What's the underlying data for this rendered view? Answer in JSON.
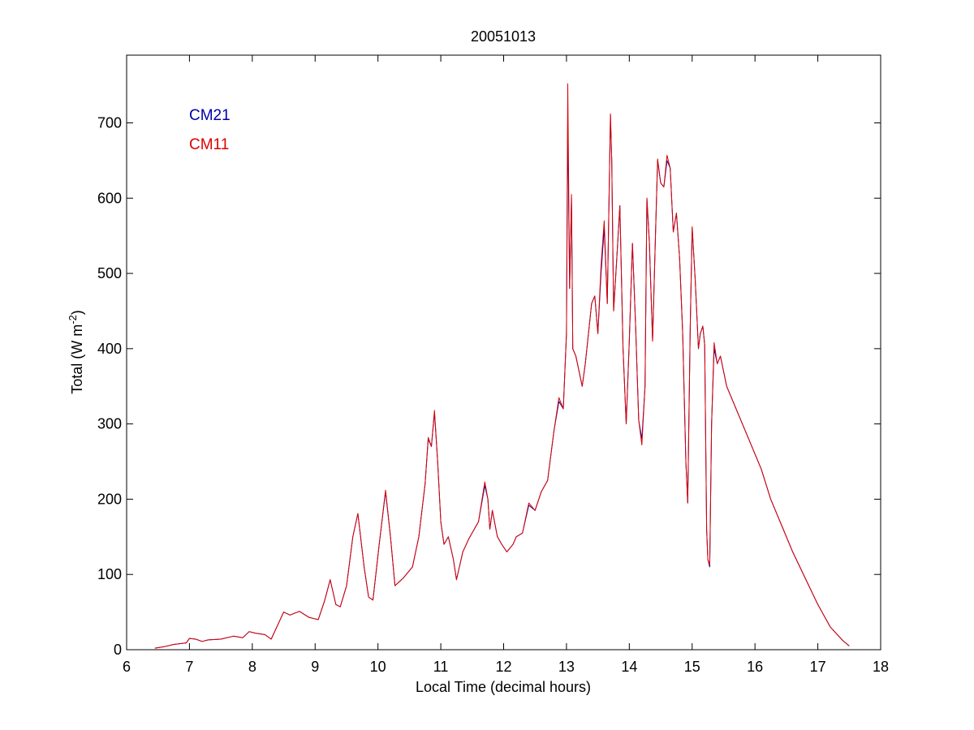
{
  "chart_data": {
    "type": "line",
    "title": "20051013",
    "xlabel": "Local Time (decimal hours)",
    "ylabel": {
      "main": "Total (W m",
      "sup": "-2",
      "close": ")"
    },
    "xlim": [
      6,
      18
    ],
    "ylim": [
      0,
      790
    ],
    "x_ticks": [
      6,
      7,
      8,
      9,
      10,
      11,
      12,
      13,
      14,
      15,
      16,
      17,
      18
    ],
    "y_ticks": [
      0,
      100,
      200,
      300,
      400,
      500,
      600,
      700
    ],
    "grid": false,
    "legend": {
      "placement": "top-left",
      "position_note": "text labels only, no line samples"
    },
    "series": [
      {
        "name": "CM21",
        "color": "#0000aa",
        "points": [
          [
            6.45,
            2
          ],
          [
            6.6,
            4
          ],
          [
            6.75,
            7
          ],
          [
            6.95,
            9
          ],
          [
            7.0,
            15
          ],
          [
            7.1,
            14
          ],
          [
            7.2,
            11
          ],
          [
            7.3,
            13
          ],
          [
            7.5,
            14
          ],
          [
            7.7,
            18
          ],
          [
            7.85,
            16
          ],
          [
            7.95,
            24
          ],
          [
            8.05,
            22
          ],
          [
            8.2,
            20
          ],
          [
            8.3,
            14
          ],
          [
            8.4,
            32
          ],
          [
            8.5,
            50
          ],
          [
            8.6,
            46
          ],
          [
            8.75,
            51
          ],
          [
            8.9,
            43
          ],
          [
            9.05,
            40
          ],
          [
            9.15,
            65
          ],
          [
            9.24,
            93
          ],
          [
            9.33,
            60
          ],
          [
            9.4,
            57
          ],
          [
            9.5,
            85
          ],
          [
            9.6,
            150
          ],
          [
            9.68,
            181
          ],
          [
            9.78,
            110
          ],
          [
            9.85,
            70
          ],
          [
            9.92,
            66
          ],
          [
            10.02,
            140
          ],
          [
            10.12,
            210
          ],
          [
            10.2,
            150
          ],
          [
            10.27,
            85
          ],
          [
            10.4,
            95
          ],
          [
            10.55,
            110
          ],
          [
            10.65,
            150
          ],
          [
            10.75,
            220
          ],
          [
            10.8,
            280
          ],
          [
            10.85,
            270
          ],
          [
            10.9,
            315
          ],
          [
            10.95,
            250
          ],
          [
            11.0,
            170
          ],
          [
            11.05,
            140
          ],
          [
            11.12,
            150
          ],
          [
            11.2,
            120
          ],
          [
            11.25,
            93
          ],
          [
            11.35,
            130
          ],
          [
            11.45,
            148
          ],
          [
            11.6,
            170
          ],
          [
            11.7,
            218
          ],
          [
            11.75,
            200
          ],
          [
            11.78,
            160
          ],
          [
            11.82,
            185
          ],
          [
            11.9,
            150
          ],
          [
            11.97,
            140
          ],
          [
            12.05,
            130
          ],
          [
            12.15,
            140
          ],
          [
            12.2,
            150
          ],
          [
            12.3,
            155
          ],
          [
            12.4,
            192
          ],
          [
            12.5,
            185
          ],
          [
            12.6,
            210
          ],
          [
            12.7,
            225
          ],
          [
            12.8,
            290
          ],
          [
            12.88,
            330
          ],
          [
            12.95,
            320
          ],
          [
            13.0,
            420
          ],
          [
            13.02,
            700
          ],
          [
            13.05,
            480
          ],
          [
            13.08,
            600
          ],
          [
            13.1,
            400
          ],
          [
            13.15,
            390
          ],
          [
            13.25,
            350
          ],
          [
            13.3,
            380
          ],
          [
            13.4,
            460
          ],
          [
            13.45,
            470
          ],
          [
            13.5,
            420
          ],
          [
            13.55,
            500
          ],
          [
            13.6,
            560
          ],
          [
            13.65,
            460
          ],
          [
            13.7,
            710
          ],
          [
            13.72,
            650
          ],
          [
            13.75,
            450
          ],
          [
            13.8,
            520
          ],
          [
            13.85,
            590
          ],
          [
            13.9,
            400
          ],
          [
            13.95,
            300
          ],
          [
            14.0,
            410
          ],
          [
            14.05,
            540
          ],
          [
            14.1,
            430
          ],
          [
            14.15,
            305
          ],
          [
            14.2,
            280
          ],
          [
            14.25,
            350
          ],
          [
            14.28,
            600
          ],
          [
            14.32,
            540
          ],
          [
            14.37,
            410
          ],
          [
            14.42,
            560
          ],
          [
            14.45,
            650
          ],
          [
            14.5,
            620
          ],
          [
            14.55,
            615
          ],
          [
            14.6,
            650
          ],
          [
            14.65,
            640
          ],
          [
            14.7,
            555
          ],
          [
            14.75,
            580
          ],
          [
            14.8,
            520
          ],
          [
            14.85,
            420
          ],
          [
            14.9,
            250
          ],
          [
            14.93,
            195
          ],
          [
            14.97,
            430
          ],
          [
            15.0,
            560
          ],
          [
            15.05,
            490
          ],
          [
            15.1,
            400
          ],
          [
            15.13,
            420
          ],
          [
            15.17,
            430
          ],
          [
            15.2,
            405
          ],
          [
            15.23,
            160
          ],
          [
            15.25,
            120
          ],
          [
            15.28,
            110
          ],
          [
            15.31,
            300
          ],
          [
            15.35,
            400
          ],
          [
            15.4,
            380
          ],
          [
            15.45,
            390
          ],
          [
            15.55,
            350
          ],
          [
            15.7,
            320
          ],
          [
            15.9,
            280
          ],
          [
            16.1,
            240
          ],
          [
            16.25,
            200
          ],
          [
            16.45,
            160
          ],
          [
            16.6,
            130
          ],
          [
            16.8,
            95
          ],
          [
            17.0,
            60
          ],
          [
            17.2,
            30
          ],
          [
            17.4,
            12
          ],
          [
            17.5,
            5
          ]
        ]
      },
      {
        "name": "CM11",
        "color": "#dd0000",
        "points": [
          [
            6.45,
            2
          ],
          [
            6.6,
            4
          ],
          [
            6.75,
            7
          ],
          [
            6.95,
            9
          ],
          [
            7.0,
            15
          ],
          [
            7.1,
            14
          ],
          [
            7.2,
            11
          ],
          [
            7.3,
            13
          ],
          [
            7.5,
            14
          ],
          [
            7.7,
            18
          ],
          [
            7.85,
            16
          ],
          [
            7.95,
            24
          ],
          [
            8.05,
            22
          ],
          [
            8.2,
            20
          ],
          [
            8.3,
            14
          ],
          [
            8.4,
            32
          ],
          [
            8.5,
            50
          ],
          [
            8.6,
            46
          ],
          [
            8.75,
            51
          ],
          [
            8.9,
            43
          ],
          [
            9.05,
            40
          ],
          [
            9.15,
            65
          ],
          [
            9.24,
            93
          ],
          [
            9.33,
            60
          ],
          [
            9.4,
            57
          ],
          [
            9.5,
            85
          ],
          [
            9.6,
            150
          ],
          [
            9.68,
            181
          ],
          [
            9.78,
            110
          ],
          [
            9.85,
            70
          ],
          [
            9.92,
            66
          ],
          [
            10.02,
            140
          ],
          [
            10.12,
            212
          ],
          [
            10.2,
            150
          ],
          [
            10.27,
            85
          ],
          [
            10.4,
            95
          ],
          [
            10.55,
            110
          ],
          [
            10.65,
            150
          ],
          [
            10.75,
            220
          ],
          [
            10.8,
            282
          ],
          [
            10.85,
            270
          ],
          [
            10.9,
            318
          ],
          [
            10.95,
            250
          ],
          [
            11.0,
            170
          ],
          [
            11.05,
            140
          ],
          [
            11.12,
            150
          ],
          [
            11.2,
            120
          ],
          [
            11.25,
            93
          ],
          [
            11.35,
            130
          ],
          [
            11.45,
            148
          ],
          [
            11.6,
            170
          ],
          [
            11.7,
            223
          ],
          [
            11.75,
            200
          ],
          [
            11.78,
            160
          ],
          [
            11.82,
            185
          ],
          [
            11.9,
            150
          ],
          [
            11.97,
            140
          ],
          [
            12.05,
            130
          ],
          [
            12.15,
            140
          ],
          [
            12.2,
            150
          ],
          [
            12.3,
            155
          ],
          [
            12.4,
            195
          ],
          [
            12.5,
            185
          ],
          [
            12.6,
            210
          ],
          [
            12.7,
            225
          ],
          [
            12.8,
            290
          ],
          [
            12.88,
            335
          ],
          [
            12.95,
            320
          ],
          [
            13.0,
            420
          ],
          [
            13.02,
            752
          ],
          [
            13.05,
            480
          ],
          [
            13.08,
            605
          ],
          [
            13.1,
            400
          ],
          [
            13.15,
            390
          ],
          [
            13.25,
            350
          ],
          [
            13.3,
            380
          ],
          [
            13.4,
            460
          ],
          [
            13.45,
            470
          ],
          [
            13.5,
            420
          ],
          [
            13.55,
            510
          ],
          [
            13.6,
            570
          ],
          [
            13.65,
            460
          ],
          [
            13.7,
            712
          ],
          [
            13.72,
            650
          ],
          [
            13.75,
            450
          ],
          [
            13.8,
            520
          ],
          [
            13.85,
            590
          ],
          [
            13.9,
            400
          ],
          [
            13.95,
            300
          ],
          [
            14.0,
            410
          ],
          [
            14.05,
            540
          ],
          [
            14.1,
            430
          ],
          [
            14.15,
            305
          ],
          [
            14.2,
            272
          ],
          [
            14.25,
            350
          ],
          [
            14.28,
            600
          ],
          [
            14.32,
            540
          ],
          [
            14.37,
            410
          ],
          [
            14.42,
            560
          ],
          [
            14.45,
            652
          ],
          [
            14.5,
            620
          ],
          [
            14.55,
            615
          ],
          [
            14.6,
            657
          ],
          [
            14.65,
            640
          ],
          [
            14.7,
            555
          ],
          [
            14.75,
            580
          ],
          [
            14.8,
            520
          ],
          [
            14.85,
            420
          ],
          [
            14.9,
            250
          ],
          [
            14.93,
            195
          ],
          [
            14.97,
            430
          ],
          [
            15.0,
            562
          ],
          [
            15.05,
            490
          ],
          [
            15.1,
            400
          ],
          [
            15.13,
            420
          ],
          [
            15.17,
            430
          ],
          [
            15.2,
            405
          ],
          [
            15.23,
            160
          ],
          [
            15.25,
            120
          ],
          [
            15.28,
            113
          ],
          [
            15.31,
            300
          ],
          [
            15.35,
            408
          ],
          [
            15.4,
            380
          ],
          [
            15.45,
            390
          ],
          [
            15.55,
            350
          ],
          [
            15.7,
            320
          ],
          [
            15.9,
            280
          ],
          [
            16.1,
            240
          ],
          [
            16.25,
            200
          ],
          [
            16.45,
            160
          ],
          [
            16.6,
            130
          ],
          [
            16.8,
            95
          ],
          [
            17.0,
            60
          ],
          [
            17.2,
            30
          ],
          [
            17.4,
            12
          ],
          [
            17.5,
            5
          ]
        ]
      }
    ]
  }
}
